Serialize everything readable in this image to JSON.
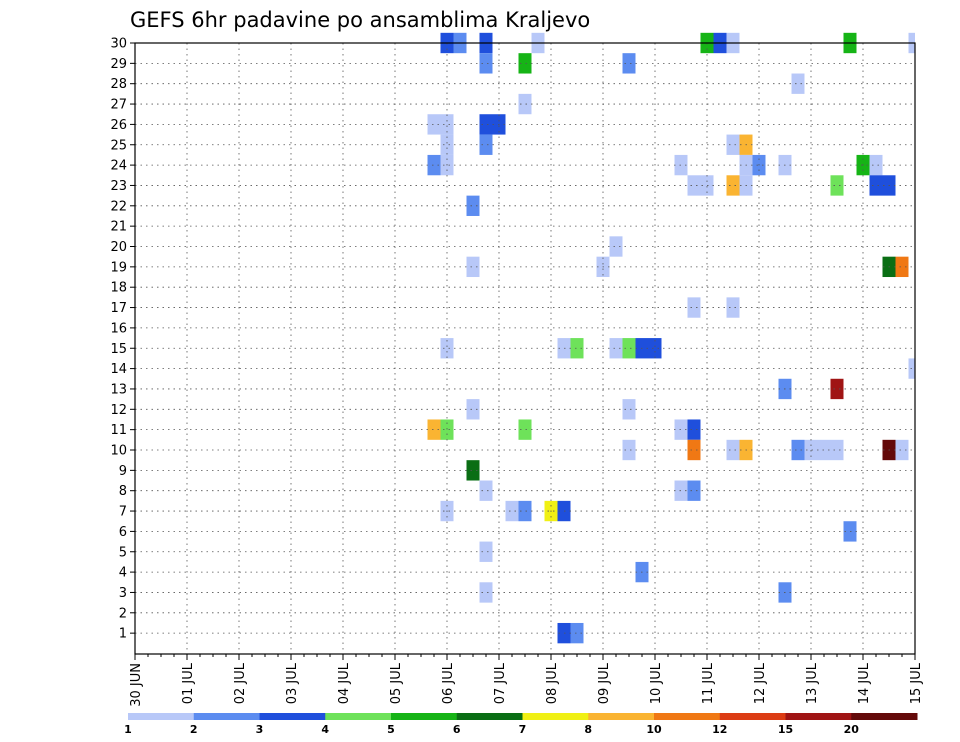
{
  "chart_data": {
    "type": "heatmap",
    "title": "GEFS 6hr padavine po ansamblima Kraljevo",
    "x_tick_labels": [
      "30 JUN",
      "01 JUL",
      "02 JUL",
      "03 JUL",
      "04 JUL",
      "05 JUL",
      "06 JUL",
      "07 JUL",
      "08 JUL",
      "09 JUL",
      "10 JUL",
      "11 JUL",
      "12 JUL",
      "13 JUL",
      "14 JUL",
      "15 JUL"
    ],
    "x_step": "6hr",
    "y_tick_labels": [
      "1",
      "2",
      "3",
      "4",
      "5",
      "6",
      "7",
      "8",
      "9",
      "10",
      "11",
      "12",
      "13",
      "14",
      "15",
      "16",
      "17",
      "18",
      "19",
      "20",
      "21",
      "22",
      "23",
      "24",
      "25",
      "26",
      "27",
      "28",
      "29",
      "30"
    ],
    "grid": true,
    "legend_position": "bottom",
    "colorbar": {
      "labels": [
        "1",
        "2",
        "3",
        "4",
        "5",
        "6",
        "7",
        "8",
        "10",
        "12",
        "15",
        "20"
      ],
      "colors": [
        "#b8c8f8",
        "#5c8cf0",
        "#1f4fdc",
        "#6ee25a",
        "#16b416",
        "#0a6e14",
        "#f0f014",
        "#fab432",
        "#f07814",
        "#dc3c14",
        "#a01414",
        "#640a0a"
      ]
    },
    "cells": [
      {
        "m": 30,
        "d": 6.0,
        "c": 2
      },
      {
        "m": 30,
        "d": 6.25,
        "c": 1
      },
      {
        "m": 30,
        "d": 6.75,
        "c": 2
      },
      {
        "m": 30,
        "d": 7.75,
        "c": 0
      },
      {
        "m": 30,
        "d": 11.0,
        "c": 4
      },
      {
        "m": 30,
        "d": 11.25,
        "c": 2
      },
      {
        "m": 30,
        "d": 11.5,
        "c": 0
      },
      {
        "m": 30,
        "d": 13.75,
        "c": 4
      },
      {
        "m": 30,
        "d": 15.0,
        "c": 0
      },
      {
        "m": 29,
        "d": 6.75,
        "c": 1
      },
      {
        "m": 29,
        "d": 7.5,
        "c": 4
      },
      {
        "m": 29,
        "d": 9.5,
        "c": 1
      },
      {
        "m": 28,
        "d": 12.75,
        "c": 0
      },
      {
        "m": 27,
        "d": 7.5,
        "c": 0
      },
      {
        "m": 26,
        "d": 5.75,
        "c": 0
      },
      {
        "m": 26,
        "d": 6.0,
        "c": 0
      },
      {
        "m": 26,
        "d": 6.75,
        "c": 2
      },
      {
        "m": 26,
        "d": 7.0,
        "c": 2
      },
      {
        "m": 25,
        "d": 6.0,
        "c": 0
      },
      {
        "m": 25,
        "d": 6.75,
        "c": 1
      },
      {
        "m": 25,
        "d": 11.5,
        "c": 0
      },
      {
        "m": 25,
        "d": 11.75,
        "c": 7
      },
      {
        "m": 24,
        "d": 5.75,
        "c": 1
      },
      {
        "m": 24,
        "d": 6.0,
        "c": 0
      },
      {
        "m": 24,
        "d": 10.5,
        "c": 0
      },
      {
        "m": 24,
        "d": 11.75,
        "c": 0
      },
      {
        "m": 24,
        "d": 12.0,
        "c": 1
      },
      {
        "m": 24,
        "d": 12.5,
        "c": 0
      },
      {
        "m": 24,
        "d": 14.0,
        "c": 4
      },
      {
        "m": 24,
        "d": 14.25,
        "c": 0
      },
      {
        "m": 23,
        "d": 10.75,
        "c": 0
      },
      {
        "m": 23,
        "d": 11.0,
        "c": 0
      },
      {
        "m": 23,
        "d": 11.5,
        "c": 7
      },
      {
        "m": 23,
        "d": 11.75,
        "c": 0
      },
      {
        "m": 23,
        "d": 13.5,
        "c": 3
      },
      {
        "m": 23,
        "d": 14.25,
        "c": 2
      },
      {
        "m": 23,
        "d": 14.5,
        "c": 2
      },
      {
        "m": 22,
        "d": 6.5,
        "c": 1
      },
      {
        "m": 20,
        "d": 9.25,
        "c": 0
      },
      {
        "m": 19,
        "d": 6.5,
        "c": 0
      },
      {
        "m": 19,
        "d": 9.0,
        "c": 0
      },
      {
        "m": 19,
        "d": 14.5,
        "c": 5
      },
      {
        "m": 19,
        "d": 14.75,
        "c": 8
      },
      {
        "m": 17,
        "d": 10.75,
        "c": 0
      },
      {
        "m": 17,
        "d": 11.5,
        "c": 0
      },
      {
        "m": 15,
        "d": 6.0,
        "c": 0
      },
      {
        "m": 15,
        "d": 8.25,
        "c": 0
      },
      {
        "m": 15,
        "d": 8.5,
        "c": 3
      },
      {
        "m": 15,
        "d": 9.25,
        "c": 0
      },
      {
        "m": 15,
        "d": 9.5,
        "c": 3
      },
      {
        "m": 15,
        "d": 9.75,
        "c": 2
      },
      {
        "m": 15,
        "d": 10.0,
        "c": 2
      },
      {
        "m": 14,
        "d": 15.0,
        "c": 0
      },
      {
        "m": 13,
        "d": 12.5,
        "c": 1
      },
      {
        "m": 13,
        "d": 13.5,
        "c": 10
      },
      {
        "m": 12,
        "d": 6.5,
        "c": 0
      },
      {
        "m": 12,
        "d": 9.5,
        "c": 0
      },
      {
        "m": 11,
        "d": 5.75,
        "c": 7
      },
      {
        "m": 11,
        "d": 6.0,
        "c": 3
      },
      {
        "m": 11,
        "d": 7.5,
        "c": 3
      },
      {
        "m": 11,
        "d": 10.5,
        "c": 0
      },
      {
        "m": 11,
        "d": 10.75,
        "c": 2
      },
      {
        "m": 10,
        "d": 9.5,
        "c": 0
      },
      {
        "m": 10,
        "d": 10.75,
        "c": 8
      },
      {
        "m": 10,
        "d": 11.5,
        "c": 0
      },
      {
        "m": 10,
        "d": 11.75,
        "c": 7
      },
      {
        "m": 10,
        "d": 12.75,
        "c": 1
      },
      {
        "m": 10,
        "d": 13.0,
        "c": 0
      },
      {
        "m": 10,
        "d": 13.25,
        "c": 0
      },
      {
        "m": 10,
        "d": 13.5,
        "c": 0
      },
      {
        "m": 10,
        "d": 14.5,
        "c": 11
      },
      {
        "m": 10,
        "d": 14.75,
        "c": 0
      },
      {
        "m": 9,
        "d": 6.5,
        "c": 5
      },
      {
        "m": 8,
        "d": 6.75,
        "c": 0
      },
      {
        "m": 8,
        "d": 10.5,
        "c": 0
      },
      {
        "m": 8,
        "d": 10.75,
        "c": 1
      },
      {
        "m": 7,
        "d": 6.0,
        "c": 0
      },
      {
        "m": 7,
        "d": 7.25,
        "c": 0
      },
      {
        "m": 7,
        "d": 7.5,
        "c": 1
      },
      {
        "m": 7,
        "d": 8.0,
        "c": 6
      },
      {
        "m": 7,
        "d": 8.25,
        "c": 2
      },
      {
        "m": 6,
        "d": 13.75,
        "c": 1
      },
      {
        "m": 5,
        "d": 6.75,
        "c": 0
      },
      {
        "m": 4,
        "d": 9.75,
        "c": 1
      },
      {
        "m": 3,
        "d": 6.75,
        "c": 0
      },
      {
        "m": 3,
        "d": 12.5,
        "c": 1
      },
      {
        "m": 1,
        "d": 8.25,
        "c": 2
      },
      {
        "m": 1,
        "d": 8.5,
        "c": 1
      }
    ]
  }
}
